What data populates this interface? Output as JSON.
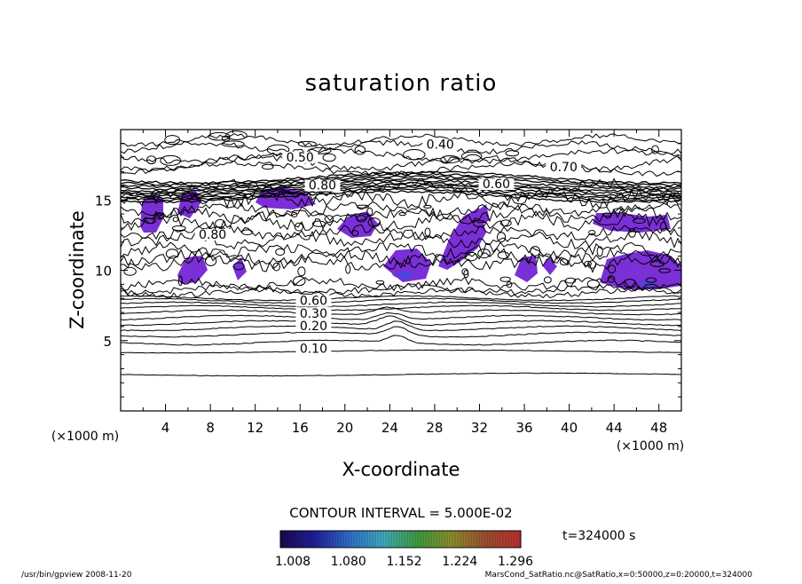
{
  "chart_data": {
    "type": "contour",
    "title": "saturation ratio",
    "xlabel": "X-coordinate",
    "ylabel": "Z-coordinate",
    "x_unit": "(×1000 m)",
    "z_unit": "(×1000 m)",
    "xlim": [
      0,
      50
    ],
    "ylim": [
      0,
      20
    ],
    "x_ticks": [
      "4",
      "8",
      "12",
      "16",
      "20",
      "24",
      "28",
      "32",
      "36",
      "40",
      "44",
      "48"
    ],
    "y_ticks": [
      "5",
      "10",
      "15"
    ],
    "contour_interval_text": "CONTOUR INTERVAL = 5.000E-02",
    "contour_labels": [
      {
        "text": "0.40",
        "x": 28.5,
        "z": 18.7
      },
      {
        "text": "0.50",
        "x": 16.0,
        "z": 17.8
      },
      {
        "text": "0.70",
        "x": 39.5,
        "z": 17.1
      },
      {
        "text": "0.60",
        "x": 33.5,
        "z": 15.9
      },
      {
        "text": "0.80",
        "x": 18.0,
        "z": 15.8
      },
      {
        "text": "0.80",
        "x": 8.2,
        "z": 12.3
      },
      {
        "text": "0.60",
        "x": 17.2,
        "z": 7.6
      },
      {
        "text": "0.30",
        "x": 17.2,
        "z": 6.7
      },
      {
        "text": "0.20",
        "x": 17.2,
        "z": 5.8
      },
      {
        "text": "0.10",
        "x": 17.2,
        "z": 4.2
      }
    ],
    "colorbar": {
      "labels": [
        "1.008",
        "1.080",
        "1.152",
        "1.224",
        "1.296"
      ],
      "colors": [
        "#1a0a50",
        "#2020a0",
        "#3070d0",
        "#40b0c0",
        "#40a040",
        "#909030",
        "#a05030",
        "#c03030"
      ]
    },
    "time_label": "t=324000 s"
  },
  "footer": {
    "left": "/usr/bin/gpview   2008-11-20",
    "right": "MarsCond_SatRatio.nc@SatRatio,x=0:50000,z=0:20000,t=324000"
  }
}
